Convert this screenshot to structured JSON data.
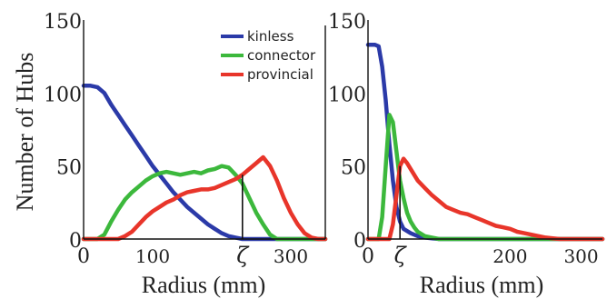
{
  "chart_data": [
    {
      "type": "line",
      "xlabel": "Radius (mm)",
      "ylabel": "Number of Hubs",
      "xlim": [
        0,
        350
      ],
      "ylim": [
        0,
        150
      ],
      "x_ticks": [
        {
          "value": 0,
          "label": "0"
        },
        {
          "value": 100,
          "label": "100"
        },
        {
          "value": 230,
          "label": "ζ"
        },
        {
          "value": 300,
          "label": "300"
        }
      ],
      "y_ticks": [
        {
          "value": 0,
          "label": "0"
        },
        {
          "value": 50,
          "label": "50"
        },
        {
          "value": 100,
          "label": "100"
        },
        {
          "value": 150,
          "label": "150"
        }
      ],
      "zeta": 230,
      "legend": {
        "placement": "top-right"
      },
      "series": [
        {
          "name": "kinless",
          "color": "#2b3aa8",
          "x": [
            0,
            10,
            20,
            30,
            40,
            50,
            60,
            70,
            80,
            90,
            100,
            110,
            120,
            130,
            140,
            150,
            160,
            170,
            180,
            190,
            200,
            210,
            220,
            230,
            240,
            250,
            350
          ],
          "y": [
            105,
            105,
            104,
            100,
            92,
            85,
            78,
            71,
            64,
            57,
            50,
            44,
            38,
            32,
            27,
            22,
            18,
            14,
            10,
            7,
            4,
            2,
            1,
            0,
            0,
            0,
            0
          ]
        },
        {
          "name": "connector",
          "color": "#3cb83c",
          "x": [
            0,
            20,
            30,
            40,
            50,
            60,
            70,
            80,
            90,
            100,
            110,
            120,
            130,
            140,
            150,
            160,
            170,
            180,
            190,
            200,
            210,
            220,
            230,
            240,
            250,
            260,
            270,
            280,
            350
          ],
          "y": [
            0,
            0,
            3,
            12,
            20,
            27,
            32,
            36,
            40,
            43,
            45,
            46,
            45,
            44,
            45,
            46,
            45,
            47,
            48,
            50,
            49,
            44,
            38,
            28,
            18,
            10,
            3,
            0,
            0
          ]
        },
        {
          "name": "provincial",
          "color": "#e8352a",
          "x": [
            0,
            50,
            60,
            70,
            80,
            90,
            100,
            110,
            120,
            130,
            140,
            150,
            160,
            170,
            180,
            190,
            200,
            210,
            220,
            230,
            240,
            250,
            260,
            270,
            280,
            290,
            300,
            310,
            320,
            330,
            340,
            350
          ],
          "y": [
            0,
            0,
            2,
            5,
            10,
            15,
            19,
            22,
            25,
            27,
            30,
            32,
            33,
            34,
            34,
            35,
            37,
            39,
            41,
            44,
            48,
            52,
            56,
            50,
            40,
            28,
            18,
            10,
            4,
            1,
            0,
            0
          ]
        }
      ]
    },
    {
      "type": "line",
      "xlabel": "Radius (mm)",
      "ylabel": "",
      "xlim": [
        0,
        330
      ],
      "ylim": [
        0,
        150
      ],
      "x_ticks": [
        {
          "value": 0,
          "label": "0"
        },
        {
          "value": 45,
          "label": "ζ"
        },
        {
          "value": 200,
          "label": "200"
        },
        {
          "value": 300,
          "label": "300"
        }
      ],
      "y_ticks": [
        {
          "value": 0,
          "label": "0"
        },
        {
          "value": 50,
          "label": "50"
        },
        {
          "value": 100,
          "label": "100"
        },
        {
          "value": 150,
          "label": "150"
        }
      ],
      "zeta": 45,
      "series": [
        {
          "name": "kinless",
          "color": "#2b3aa8",
          "x": [
            0,
            5,
            10,
            15,
            20,
            25,
            30,
            35,
            40,
            45,
            50,
            60,
            70,
            80,
            90,
            100,
            110,
            330
          ],
          "y": [
            133,
            133,
            133,
            132,
            118,
            95,
            65,
            40,
            22,
            12,
            7,
            4,
            2,
            1,
            0.5,
            0,
            0,
            0
          ]
        },
        {
          "name": "connector",
          "color": "#3cb83c",
          "x": [
            0,
            15,
            20,
            25,
            30,
            35,
            40,
            45,
            50,
            55,
            60,
            65,
            70,
            80,
            90,
            100,
            110,
            330
          ],
          "y": [
            0,
            0,
            15,
            50,
            85,
            80,
            60,
            40,
            28,
            18,
            12,
            8,
            5,
            2,
            1,
            0,
            0,
            0
          ]
        },
        {
          "name": "provincial",
          "color": "#e8352a",
          "x": [
            0,
            30,
            35,
            40,
            45,
            50,
            55,
            60,
            65,
            70,
            80,
            90,
            100,
            110,
            120,
            130,
            140,
            150,
            160,
            170,
            180,
            190,
            200,
            210,
            220,
            230,
            240,
            250,
            260,
            270,
            330
          ],
          "y": [
            0,
            0,
            10,
            30,
            50,
            55,
            52,
            48,
            44,
            40,
            35,
            30,
            26,
            22,
            20,
            18,
            17,
            15,
            13,
            11,
            9,
            8,
            7,
            5,
            4,
            3,
            2,
            1,
            0.5,
            0,
            0
          ]
        }
      ]
    }
  ]
}
